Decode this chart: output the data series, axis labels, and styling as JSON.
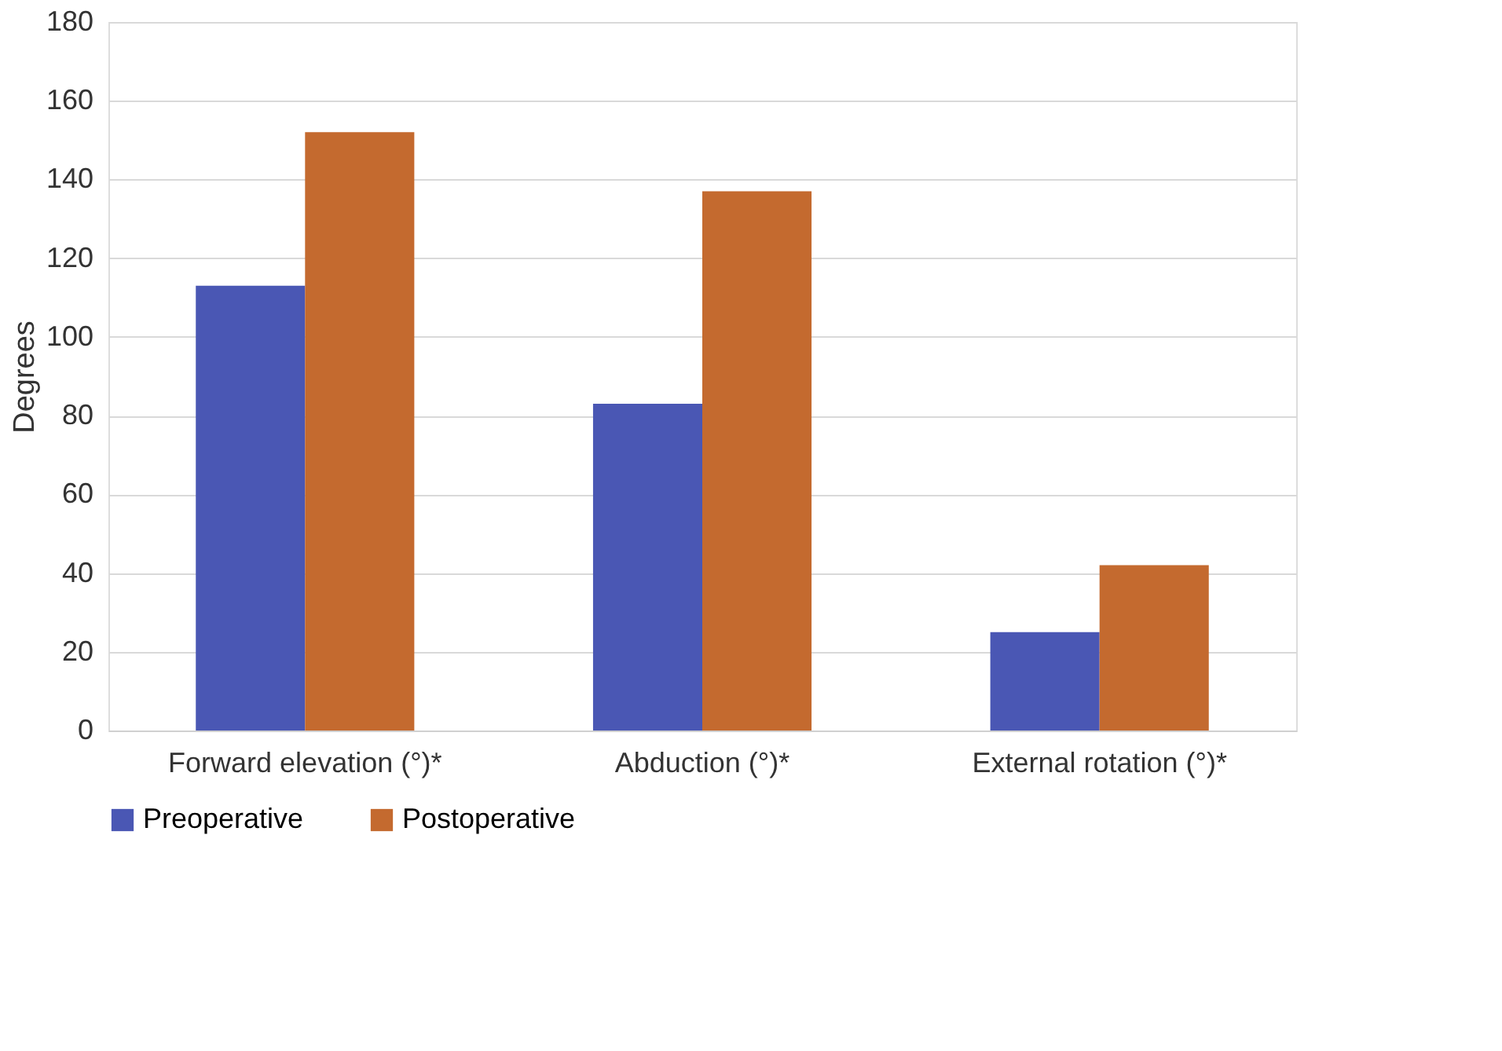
{
  "chart_data": {
    "type": "bar",
    "ylabel": "Degrees",
    "categories": [
      "Forward elevation (°)*",
      "Abduction (°)*",
      "External rotation (°)*"
    ],
    "series": [
      {
        "name": "Preoperative",
        "color": "#4a57b4",
        "values": [
          113,
          83,
          25
        ]
      },
      {
        "name": "Postoperative",
        "color": "#c46a2f",
        "values": [
          152,
          137,
          42
        ]
      }
    ],
    "ylim": [
      0,
      180
    ],
    "yticks": [
      0,
      20,
      40,
      60,
      80,
      100,
      120,
      140,
      160,
      180
    ],
    "grid": "y",
    "legend": "bottom"
  }
}
